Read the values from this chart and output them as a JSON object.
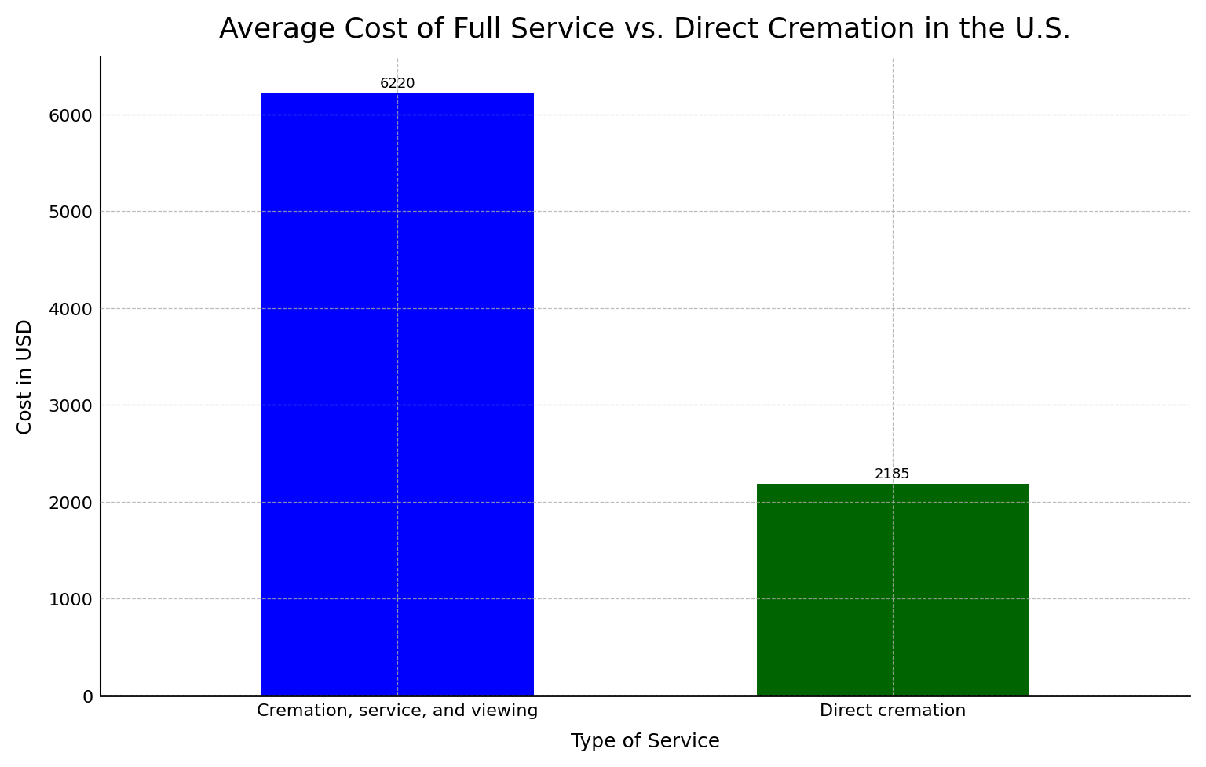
{
  "title": "Average Cost of Full Service vs. Direct Cremation in the U.S.",
  "categories": [
    "Cremation, service, and viewing",
    "Direct cremation"
  ],
  "values": [
    6220,
    2185
  ],
  "bar_colors": [
    "#0000ff",
    "#006400"
  ],
  "xlabel": "Type of Service",
  "ylabel": "Cost in USD",
  "ylim": [
    0,
    6600
  ],
  "yticks": [
    0,
    1000,
    2000,
    3000,
    4000,
    5000,
    6000
  ],
  "title_fontsize": 26,
  "label_fontsize": 18,
  "tick_fontsize": 16,
  "annotation_fontsize": 13,
  "background_color": "#ffffff",
  "grid_color": "#aaaaaa",
  "grid_style": "--",
  "grid_alpha": 0.8,
  "bar_width": 0.55
}
